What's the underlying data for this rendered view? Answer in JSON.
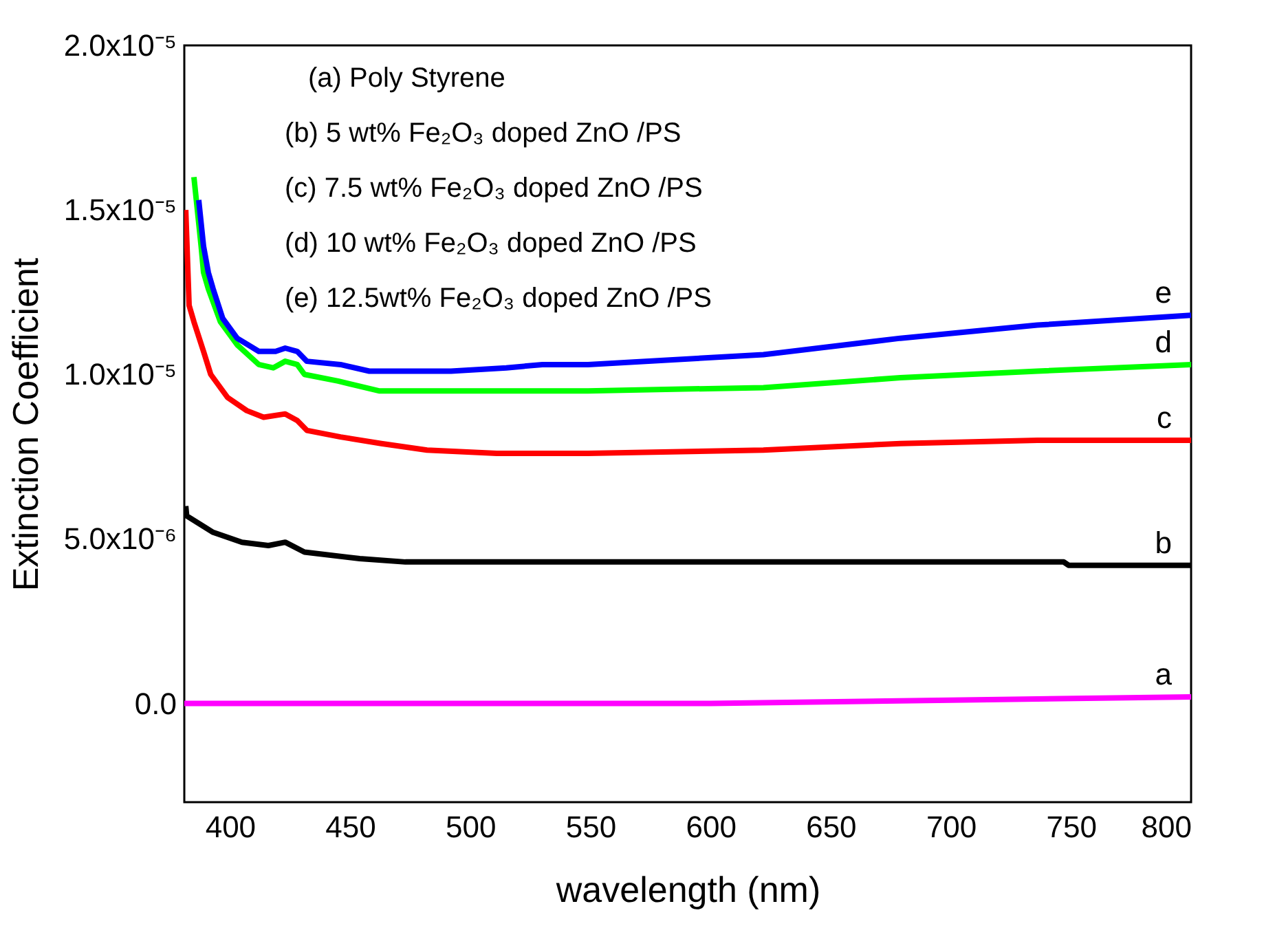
{
  "chart_data": {
    "type": "line",
    "xlabel": "wavelength (nm)",
    "ylabel": "Extinction Coefficient",
    "xlim": [
      381,
      800
    ],
    "xticks": [
      400,
      450,
      500,
      550,
      600,
      650,
      700,
      750,
      800
    ],
    "ylim": [
      -3e-06,
      2e-05
    ],
    "yticks": [
      {
        "value": 0,
        "label": "0.0"
      },
      {
        "value": 5e-06,
        "label": "5.0x10⁻⁶"
      },
      {
        "value": 1e-05,
        "label": "1.0x10⁻⁵"
      },
      {
        "value": 1.5e-05,
        "label": "1.5x10⁻⁵"
      },
      {
        "value": 2e-05,
        "label": "2.0x10⁻⁵"
      }
    ],
    "grid": false,
    "marker": "none",
    "line_style": "solid",
    "series": [
      {
        "color": "#ff00ff",
        "x": [
          381,
          600,
          700,
          800
        ],
        "values": [
          0.0,
          0.0,
          1e-07,
          2e-07
        ]
      },
      {
        "color": "#000000",
        "x": [
          381.6,
          382,
          393,
          405,
          416,
          423,
          431,
          454,
          473,
          530,
          622,
          747,
          749,
          800
        ],
        "values": [
          6e-06,
          5.7e-06,
          5.2e-06,
          4.9e-06,
          4.8e-06,
          4.9e-06,
          4.6e-06,
          4.4e-06,
          4.3e-06,
          4.3e-06,
          4.3e-06,
          4.3e-06,
          4.2e-06,
          4.2e-06
        ]
      },
      {
        "color": "#ff0000",
        "x": [
          381.6,
          383,
          385,
          389,
          392,
          399,
          407,
          414,
          423,
          428,
          432,
          446,
          463,
          482,
          511,
          549,
          622,
          679,
          736,
          800
        ],
        "values": [
          1.5e-05,
          1.21e-05,
          1.16e-05,
          1.07e-05,
          1e-05,
          9.3e-06,
          8.9e-06,
          8.7e-06,
          8.8e-06,
          8.6e-06,
          8.3e-06,
          8.1e-06,
          7.9e-06,
          7.7e-06,
          7.6e-06,
          7.6e-06,
          7.7e-06,
          7.9e-06,
          8e-06,
          8e-06
        ]
      },
      {
        "color": "#00ff00",
        "x": [
          385,
          388,
          389,
          391,
          396,
          403,
          412,
          418,
          423,
          428,
          431,
          445,
          462,
          492,
          549,
          622,
          679,
          736,
          800
        ],
        "values": [
          1.6e-05,
          1.39e-05,
          1.31e-05,
          1.26e-05,
          1.16e-05,
          1.09e-05,
          1.03e-05,
          1.02e-05,
          1.04e-05,
          1.03e-05,
          1e-05,
          9.8e-06,
          9.5e-06,
          9.5e-06,
          9.5e-06,
          9.6e-06,
          9.9e-06,
          1.01e-05,
          1.03e-05
        ]
      },
      {
        "color": "#0000ff",
        "x": [
          387,
          389,
          391,
          393,
          397,
          403,
          412,
          419,
          423,
          428,
          432,
          446,
          458,
          492,
          515,
          530,
          549,
          622,
          679,
          736,
          800
        ],
        "values": [
          1.53e-05,
          1.39e-05,
          1.31e-05,
          1.26e-05,
          1.17e-05,
          1.11e-05,
          1.07e-05,
          1.07e-05,
          1.08e-05,
          1.07e-05,
          1.04e-05,
          1.03e-05,
          1.01e-05,
          1.01e-05,
          1.02e-05,
          1.03e-05,
          1.03e-05,
          1.06e-05,
          1.11e-05,
          1.15e-05,
          1.18e-05
        ]
      }
    ],
    "annotations": [
      "(a) Poly Styrene",
      "(b) 5 wt% Fe₂O₃ doped ZnO /PS",
      "(c) 7.5 wt% Fe₂O₃ doped ZnO /PS",
      "(d) 10 wt% Fe₂O₃ doped ZnO /PS",
      "(e) 12.5wt% Fe₂O₃ doped ZnO /PS",
      "a",
      "b",
      "c",
      "d",
      "e"
    ]
  }
}
